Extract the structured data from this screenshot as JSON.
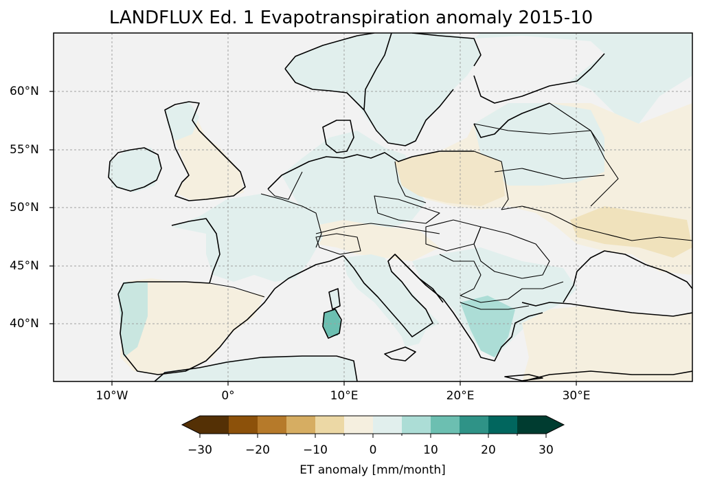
{
  "title": "LANDFLUX Ed. 1 Evapotranspiration anomaly 2015-10",
  "axes": {
    "lat_labels": [
      "60°N",
      "55°N",
      "50°N",
      "45°N",
      "40°N"
    ],
    "lon_labels": [
      "10°W",
      "0°",
      "10°E",
      "20°E",
      "30°E"
    ],
    "extent": {
      "lon": [
        -15,
        40
      ],
      "lat": [
        35,
        65
      ]
    },
    "gridlines": true
  },
  "colorbar": {
    "label": "ET anomaly [mm/month]",
    "ticks": [
      "−30",
      "−20",
      "−10",
      "0",
      "10",
      "20",
      "30"
    ],
    "range": [
      -30,
      30
    ],
    "extend": "both",
    "colors": [
      "#543005",
      "#8c510a",
      "#b67a2a",
      "#d6ad62",
      "#ecd8a5",
      "#f5efdf",
      "#e1efed",
      "#acddd6",
      "#6cbfb1",
      "#2f9387",
      "#01665e",
      "#003c30"
    ]
  },
  "colors": {
    "background": "#f2f2f2",
    "sea": "#f2f2f2",
    "coastline": "#000000",
    "neutral_positive": "#e1efed",
    "neutral_negative": "#f5efdf"
  }
}
